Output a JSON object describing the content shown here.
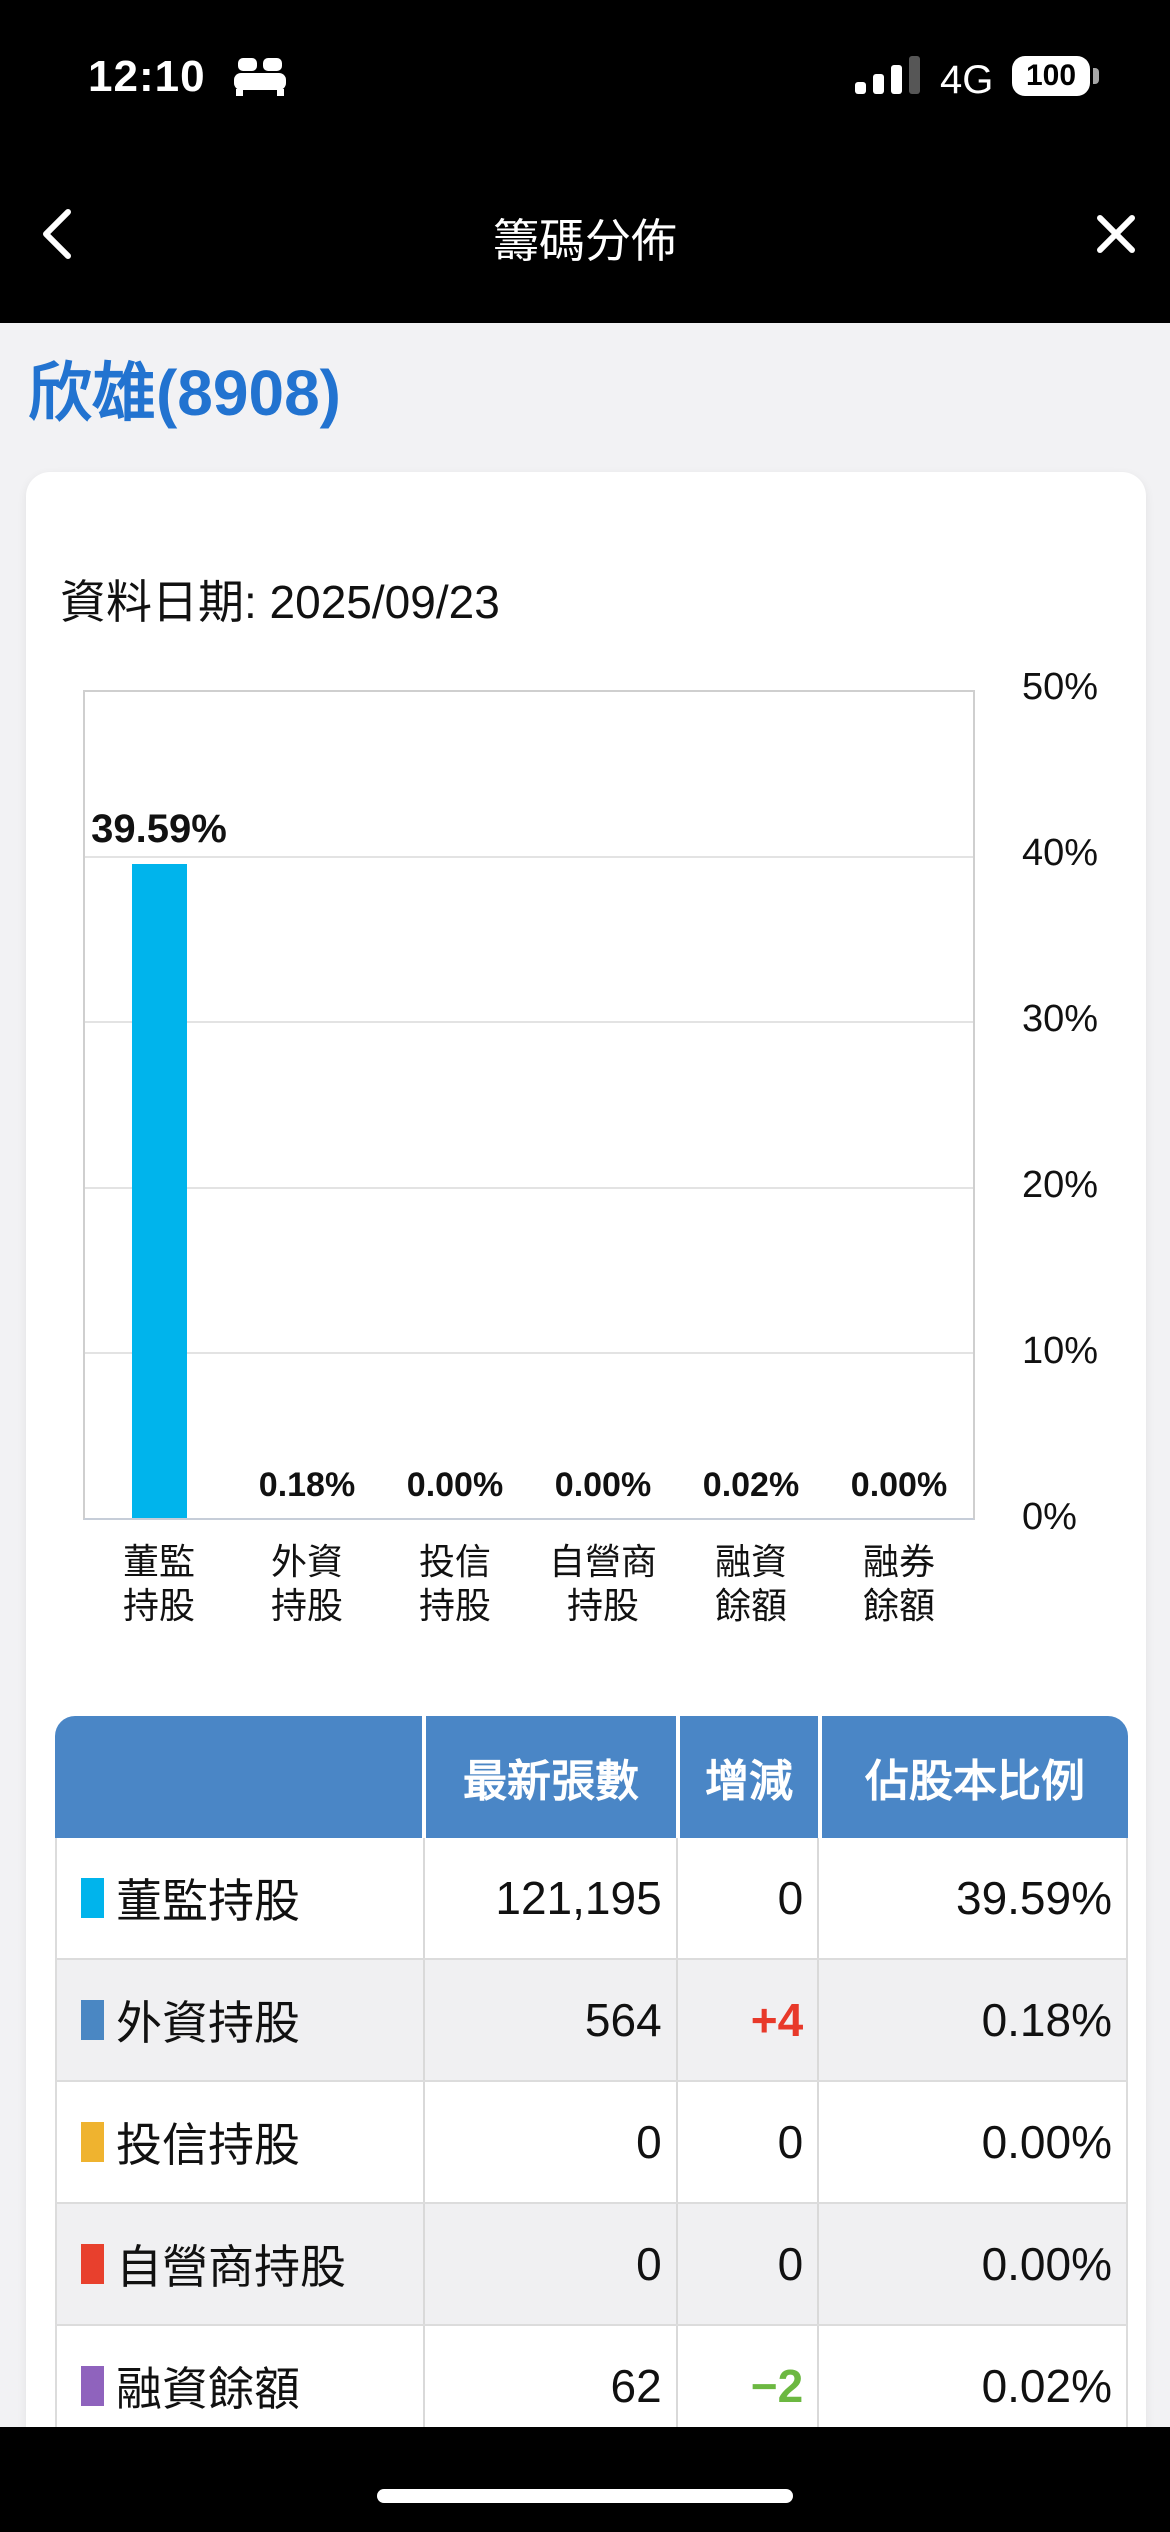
{
  "status_bar": {
    "time": "12:10",
    "network": "4G",
    "battery_percent": "100",
    "signal_bars_filled": 3,
    "signal_bars_total": 4
  },
  "nav": {
    "title": "籌碼分佈",
    "back_icon": "chevron-left",
    "close_icon": "x-close"
  },
  "stock_header": {
    "title": "欣雄(8908)"
  },
  "data_date": {
    "label": "資料日期: 2025/09/23"
  },
  "chart_data": {
    "type": "bar",
    "categories": [
      "董監持股",
      "外資持股",
      "投信持股",
      "自營商持股",
      "融資餘額",
      "融券餘額"
    ],
    "category_lines": [
      [
        "董監",
        "持股"
      ],
      [
        "外資",
        "持股"
      ],
      [
        "投信",
        "持股"
      ],
      [
        "自營商",
        "持股"
      ],
      [
        "融資",
        "餘額"
      ],
      [
        "融券",
        "餘額"
      ]
    ],
    "values": [
      39.59,
      0.18,
      0.0,
      0.0,
      0.02,
      0.0
    ],
    "value_labels": [
      "39.59%",
      "0.18%",
      "0.00%",
      "0.00%",
      "0.02%",
      "0.00%"
    ],
    "bar_colors": [
      "#00b4ec",
      "#4a87c3",
      "#efb32f",
      "#e8402d",
      "#8f63bd",
      "#999999"
    ],
    "ylim": [
      0,
      50
    ],
    "yticks": [
      0,
      10,
      20,
      30,
      40,
      50
    ],
    "ytick_labels": [
      "0%",
      "10%",
      "20%",
      "30%",
      "40%",
      "50%"
    ],
    "y_axis_position": "right",
    "grid": true,
    "xlabel": "",
    "ylabel": ""
  },
  "table": {
    "headers": [
      "",
      "最新張數",
      "增減",
      "佔股本比例"
    ],
    "rows": [
      {
        "label": "董監持股",
        "marker_color": "#00b4ec",
        "shares": "121,195",
        "change": "0",
        "change_dir": "flat",
        "ratio": "39.59%"
      },
      {
        "label": "外資持股",
        "marker_color": "#4a87c3",
        "shares": "564",
        "change": "+4",
        "change_dir": "up",
        "ratio": "0.18%"
      },
      {
        "label": "投信持股",
        "marker_color": "#efb32f",
        "shares": "0",
        "change": "0",
        "change_dir": "flat",
        "ratio": "0.00%"
      },
      {
        "label": "自營商持股",
        "marker_color": "#e8402d",
        "shares": "0",
        "change": "0",
        "change_dir": "flat",
        "ratio": "0.00%"
      },
      {
        "label": "融資餘額",
        "marker_color": "#8f63bd",
        "shares": "62",
        "change": "−2",
        "change_dir": "down",
        "ratio": "0.02%"
      }
    ],
    "change_colors": {
      "up": "#e8392a",
      "down": "#6cb841",
      "flat": "#111111"
    }
  },
  "theme": {
    "background": "#f2f2f4",
    "accent_blue": "#2273d0",
    "table_header_blue": "#4a86c6",
    "bar_cyan": "#00b4ec"
  }
}
